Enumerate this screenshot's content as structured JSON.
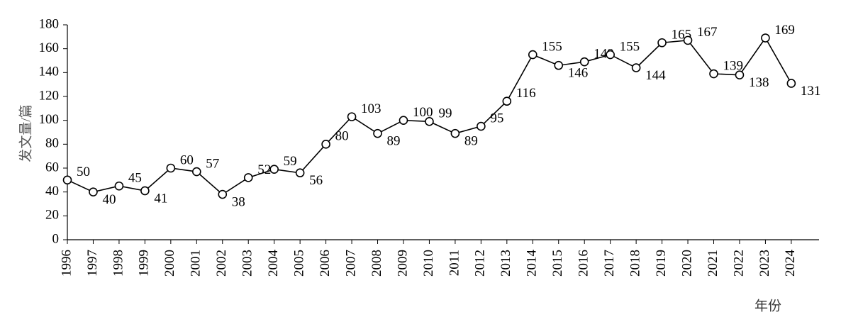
{
  "chart_data": {
    "type": "line",
    "x_label": "年份",
    "y_label": "发文量/篇",
    "categories": [
      "1996",
      "1997",
      "1998",
      "1999",
      "2000",
      "2001",
      "2002",
      "2003",
      "2004",
      "2005",
      "2006",
      "2007",
      "2008",
      "2009",
      "2010",
      "2011",
      "2012",
      "2013",
      "2014",
      "2015",
      "2016",
      "2017",
      "2018",
      "2019",
      "2020",
      "2021",
      "2022",
      "2023",
      "2024"
    ],
    "series": [
      {
        "name": "发文量",
        "color": "#000000",
        "values": [
          50,
          40,
          45,
          41,
          60,
          57,
          38,
          52,
          59,
          56,
          80,
          103,
          89,
          100,
          99,
          89,
          95,
          116,
          155,
          146,
          149,
          155,
          144,
          165,
          167,
          139,
          138,
          169,
          131
        ]
      }
    ],
    "ylim": [
      0,
      180
    ],
    "yticks": [
      0,
      20,
      40,
      60,
      80,
      100,
      120,
      140,
      160,
      180
    ],
    "grid": false,
    "data_labels": true
  }
}
